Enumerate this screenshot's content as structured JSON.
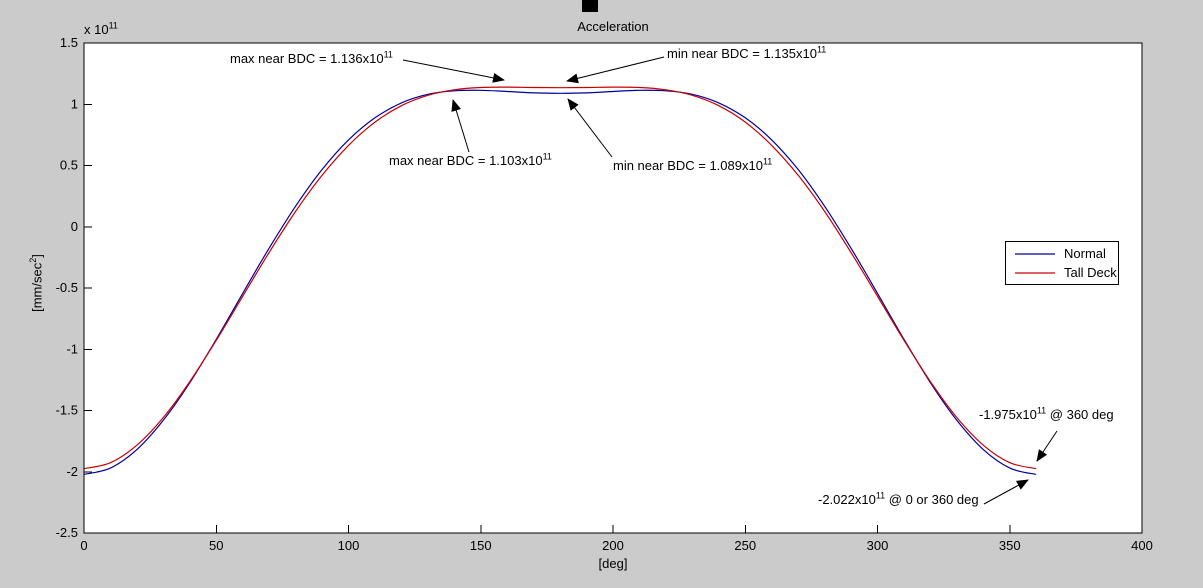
{
  "figure": {
    "title": "Acceleration",
    "background_color": "#cbcbcb",
    "plot_background_color": "#ffffff"
  },
  "axes": {
    "y_exponent_pre": "x 10",
    "y_exponent_sup": "11",
    "ylabel_pre": "[mm/sec",
    "ylabel_sup": "2",
    "ylabel_post": "]",
    "xlabel": "[deg]",
    "x_tick_labels": [
      "0",
      "50",
      "100",
      "150",
      "200",
      "250",
      "300",
      "350",
      "400"
    ],
    "y_tick_labels": [
      "1.5",
      "1",
      "0.5",
      "0",
      "-0.5",
      "-1",
      "-1.5",
      "-2",
      "-2.5"
    ]
  },
  "legend": {
    "items": [
      {
        "label": "Normal",
        "color": "#0000A0"
      },
      {
        "label": "Tall Deck",
        "color": "#CC0000"
      }
    ]
  },
  "annotations": [
    {
      "pre": "max near BDC = 1.136x10",
      "sup": "11",
      "post": ""
    },
    {
      "pre": "min near BDC = 1.135x10",
      "sup": "11",
      "post": ""
    },
    {
      "pre": "max near BDC = 1.103x10",
      "sup": "11",
      "post": ""
    },
    {
      "pre": "min near BDC = 1.089x10",
      "sup": "11",
      "post": ""
    },
    {
      "pre": "-1.975x10",
      "sup": "11",
      "post": " @ 360 deg"
    },
    {
      "pre": "-2.022x10",
      "sup": "11",
      "post": " @ 0 or 360 deg"
    }
  ],
  "chart_data": {
    "type": "line",
    "title": "Acceleration",
    "xlabel": "[deg]",
    "ylabel": "[mm/sec^2]",
    "xlim": [
      0,
      400
    ],
    "ylim_e11": [
      -2.5,
      1.5
    ],
    "y_scale": "1e11",
    "grid": false,
    "legend_position": "right",
    "x_deg": [
      0,
      10,
      20,
      30,
      40,
      50,
      60,
      70,
      80,
      90,
      100,
      110,
      120,
      130,
      140,
      150,
      160,
      170,
      180,
      190,
      200,
      210,
      220,
      230,
      240,
      250,
      260,
      270,
      280,
      290,
      300,
      310,
      320,
      330,
      340,
      350,
      360
    ],
    "series": [
      {
        "name": "Normal",
        "color": "#0000A0",
        "values_e11": [
          -2.022,
          -1.97,
          -1.819,
          -1.58,
          -1.273,
          -0.919,
          -0.544,
          -0.175,
          0.168,
          0.467,
          0.709,
          0.889,
          1.011,
          1.081,
          1.11,
          1.114,
          1.104,
          1.093,
          1.089,
          1.093,
          1.104,
          1.114,
          1.11,
          1.081,
          1.011,
          0.889,
          0.709,
          0.467,
          0.168,
          -0.175,
          -0.544,
          -0.919,
          -1.273,
          -1.58,
          -1.819,
          -1.97,
          -2.022
        ]
      },
      {
        "name": "Tall Deck",
        "color": "#CC0000",
        "values_e11": [
          -1.975,
          -1.926,
          -1.783,
          -1.557,
          -1.264,
          -0.927,
          -0.568,
          -0.21,
          0.125,
          0.42,
          0.664,
          0.854,
          0.988,
          1.073,
          1.118,
          1.137,
          1.14,
          1.137,
          1.135,
          1.137,
          1.14,
          1.137,
          1.118,
          1.073,
          0.988,
          0.854,
          0.664,
          0.42,
          0.125,
          -0.21,
          -0.568,
          -0.927,
          -1.264,
          -1.557,
          -1.783,
          -1.926,
          -1.975
        ]
      }
    ],
    "key_points": [
      {
        "series": "Tall Deck",
        "label": "max near BDC",
        "value_e11": 1.136
      },
      {
        "series": "Tall Deck",
        "label": "min near BDC",
        "value_e11": 1.135
      },
      {
        "series": "Normal",
        "label": "max near BDC",
        "value_e11": 1.103
      },
      {
        "series": "Normal",
        "label": "min near BDC",
        "value_e11": 1.089
      },
      {
        "series": "Tall Deck",
        "label": "min at 360 deg",
        "value_e11": -1.975
      },
      {
        "series": "Normal",
        "label": "min at 0 or 360 deg",
        "value_e11": -2.022
      }
    ]
  }
}
